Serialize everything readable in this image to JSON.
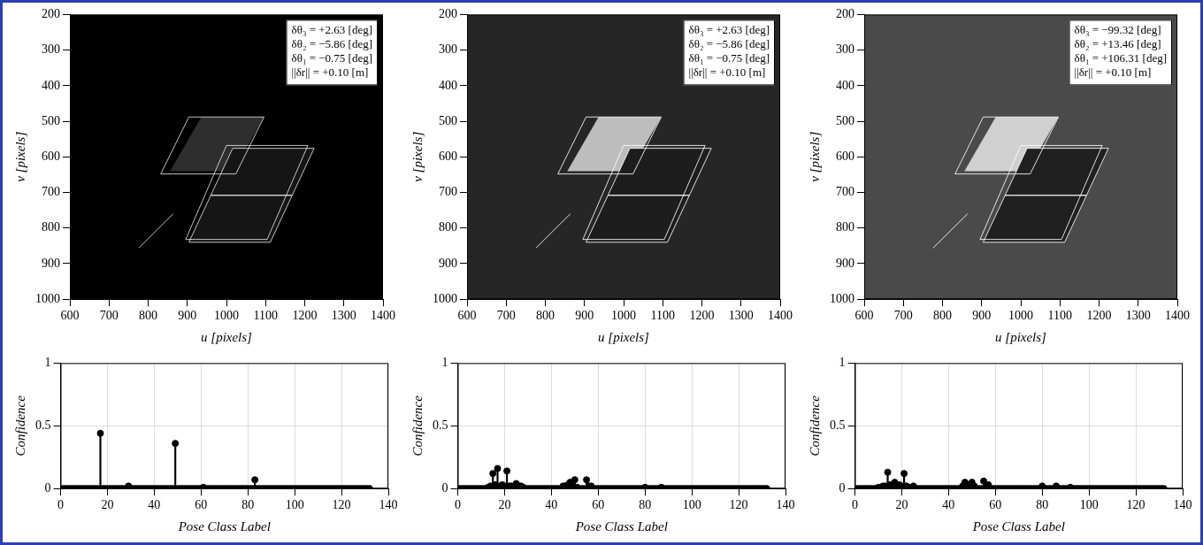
{
  "chart_data": [
    {
      "type": "image",
      "xlabel": "u [pixels]",
      "ylabel": "v [pixels]",
      "xlim": [
        600,
        1400
      ],
      "xticks": [
        600,
        700,
        800,
        900,
        1000,
        1100,
        1200,
        1300,
        1400
      ],
      "ylim": [
        1000,
        200
      ],
      "yticks": [
        200,
        300,
        400,
        500,
        600,
        700,
        800,
        900,
        1000
      ],
      "grid": false,
      "annotations": [
        "δθ₃ = +2.63 [deg]",
        "δθ₂ = −5.86 [deg]",
        "δθ₁ = −0.75 [deg]",
        "||δr|| = +0.10 [m]"
      ]
    },
    {
      "type": "image",
      "xlabel": "u [pixels]",
      "ylabel": "v [pixels]",
      "xlim": [
        600,
        1400
      ],
      "xticks": [
        600,
        700,
        800,
        900,
        1000,
        1100,
        1200,
        1300,
        1400
      ],
      "ylim": [
        1000,
        200
      ],
      "yticks": [
        200,
        300,
        400,
        500,
        600,
        700,
        800,
        900,
        1000
      ],
      "grid": false,
      "annotations": [
        "δθ₃ = +2.63 [deg]",
        "δθ₂ = −5.86 [deg]",
        "δθ₁ = −0.75 [deg]",
        "||δr|| = +0.10 [m]"
      ]
    },
    {
      "type": "image",
      "xlabel": "u [pixels]",
      "ylabel": "v [pixels]",
      "xlim": [
        600,
        1400
      ],
      "xticks": [
        600,
        700,
        800,
        900,
        1000,
        1100,
        1200,
        1300,
        1400
      ],
      "ylim": [
        1000,
        200
      ],
      "yticks": [
        200,
        300,
        400,
        500,
        600,
        700,
        800,
        900,
        1000
      ],
      "grid": false,
      "annotations": [
        "δθ₃ = −99.32 [deg]",
        "δθ₂ = +13.46 [deg]",
        "δθ₁ = +106.31 [deg]",
        "||δr|| = +0.10 [m]"
      ]
    },
    {
      "type": "stem",
      "xlabel": "Pose Class Label",
      "ylabel": "Confidence",
      "xlim": [
        0,
        140
      ],
      "xticks": [
        0,
        20,
        40,
        60,
        80,
        100,
        120,
        140
      ],
      "ylim": [
        0,
        1
      ],
      "yticks": [
        0,
        0.5,
        1
      ],
      "grid": true,
      "color": "#000000",
      "marker": "circle",
      "x": [
        1,
        2,
        3,
        4,
        5,
        6,
        7,
        8,
        9,
        10,
        11,
        12,
        13,
        14,
        15,
        16,
        17,
        18,
        19,
        20,
        21,
        22,
        23,
        24,
        25,
        26,
        27,
        28,
        29,
        30,
        31,
        32,
        33,
        34,
        35,
        36,
        37,
        38,
        39,
        40,
        41,
        42,
        43,
        44,
        45,
        46,
        47,
        48,
        49,
        50,
        51,
        52,
        53,
        54,
        55,
        56,
        57,
        58,
        59,
        60,
        61,
        62,
        63,
        64,
        65,
        66,
        67,
        68,
        69,
        70,
        71,
        72,
        73,
        74,
        75,
        76,
        77,
        78,
        79,
        80,
        81,
        82,
        83,
        84,
        85,
        86,
        87,
        88,
        89,
        90,
        91,
        92,
        93,
        94,
        95,
        96,
        97,
        98,
        99,
        100,
        101,
        102,
        103,
        104,
        105,
        106,
        107,
        108,
        109,
        110,
        111,
        112,
        113,
        114,
        115,
        116,
        117,
        118,
        119,
        120,
        121,
        122,
        123,
        124,
        125,
        126,
        127,
        128,
        129,
        130,
        131,
        132
      ],
      "values": [
        0,
        0,
        0,
        0,
        0,
        0,
        0,
        0,
        0,
        0,
        0,
        0,
        0,
        0,
        0,
        0,
        0.44,
        0,
        0,
        0,
        0,
        0,
        0,
        0,
        0,
        0,
        0,
        0,
        0.02,
        0,
        0,
        0,
        0,
        0,
        0,
        0,
        0,
        0,
        0,
        0,
        0,
        0,
        0,
        0,
        0,
        0,
        0,
        0,
        0.36,
        0,
        0,
        0,
        0,
        0,
        0,
        0,
        0,
        0,
        0,
        0,
        0.01,
        0,
        0,
        0,
        0,
        0,
        0,
        0,
        0,
        0,
        0,
        0,
        0,
        0,
        0,
        0,
        0,
        0,
        0,
        0,
        0,
        0,
        0.07,
        0,
        0,
        0,
        0,
        0,
        0,
        0,
        0,
        0,
        0,
        0,
        0,
        0,
        0,
        0,
        0,
        0,
        0,
        0,
        0,
        0,
        0,
        0,
        0,
        0,
        0,
        0,
        0,
        0,
        0,
        0,
        0,
        0,
        0,
        0,
        0,
        0,
        0,
        0,
        0,
        0,
        0,
        0,
        0,
        0,
        0,
        0,
        0,
        0
      ]
    },
    {
      "type": "stem",
      "xlabel": "Pose Class Label",
      "ylabel": "Confidence",
      "xlim": [
        0,
        140
      ],
      "xticks": [
        0,
        20,
        40,
        60,
        80,
        100,
        120,
        140
      ],
      "ylim": [
        0,
        1
      ],
      "yticks": [
        0,
        0.5,
        1
      ],
      "grid": true,
      "color": "#000000",
      "marker": "circle",
      "x": [
        1,
        2,
        3,
        4,
        5,
        6,
        7,
        8,
        9,
        10,
        11,
        12,
        13,
        14,
        15,
        16,
        17,
        18,
        19,
        20,
        21,
        22,
        23,
        24,
        25,
        26,
        27,
        28,
        29,
        30,
        31,
        32,
        33,
        34,
        35,
        36,
        37,
        38,
        39,
        40,
        41,
        42,
        43,
        44,
        45,
        46,
        47,
        48,
        49,
        50,
        51,
        52,
        53,
        54,
        55,
        56,
        57,
        58,
        59,
        60,
        61,
        62,
        63,
        64,
        65,
        66,
        67,
        68,
        69,
        70,
        71,
        72,
        73,
        74,
        75,
        76,
        77,
        78,
        79,
        80,
        81,
        82,
        83,
        84,
        85,
        86,
        87,
        88,
        89,
        90,
        91,
        92,
        93,
        94,
        95,
        96,
        97,
        98,
        99,
        100,
        101,
        102,
        103,
        104,
        105,
        106,
        107,
        108,
        109,
        110,
        111,
        112,
        113,
        114,
        115,
        116,
        117,
        118,
        119,
        120,
        121,
        122,
        123,
        124,
        125,
        126,
        127,
        128,
        129,
        130,
        131,
        132
      ],
      "values": [
        0,
        0,
        0,
        0,
        0,
        0,
        0,
        0,
        0,
        0,
        0,
        0,
        0.01,
        0.02,
        0.12,
        0.03,
        0.16,
        0.02,
        0.03,
        0.02,
        0.14,
        0.02,
        0.02,
        0.01,
        0.04,
        0.02,
        0.02,
        0.01,
        0,
        0,
        0,
        0,
        0,
        0,
        0,
        0,
        0,
        0,
        0,
        0,
        0,
        0,
        0,
        0,
        0.02,
        0.02,
        0.03,
        0.05,
        0.02,
        0.07,
        0.01,
        0,
        0,
        0,
        0.07,
        0.02,
        0.02,
        0,
        0,
        0,
        0,
        0,
        0,
        0,
        0,
        0,
        0,
        0,
        0,
        0,
        0,
        0,
        0,
        0,
        0,
        0,
        0,
        0,
        0,
        0.01,
        0,
        0,
        0,
        0,
        0,
        0,
        0.01,
        0,
        0,
        0,
        0,
        0,
        0,
        0,
        0,
        0,
        0,
        0,
        0,
        0,
        0,
        0,
        0,
        0,
        0,
        0,
        0,
        0,
        0,
        0,
        0,
        0,
        0,
        0,
        0,
        0,
        0,
        0,
        0,
        0,
        0,
        0,
        0,
        0,
        0,
        0,
        0,
        0,
        0,
        0,
        0,
        0
      ]
    },
    {
      "type": "stem",
      "xlabel": "Pose Class Label",
      "ylabel": "Confidence",
      "xlim": [
        0,
        140
      ],
      "xticks": [
        0,
        20,
        40,
        60,
        80,
        100,
        120,
        140
      ],
      "ylim": [
        0,
        1
      ],
      "yticks": [
        0,
        0.5,
        1
      ],
      "grid": true,
      "color": "#000000",
      "marker": "circle",
      "x": [
        1,
        2,
        3,
        4,
        5,
        6,
        7,
        8,
        9,
        10,
        11,
        12,
        13,
        14,
        15,
        16,
        17,
        18,
        19,
        20,
        21,
        22,
        23,
        24,
        25,
        26,
        27,
        28,
        29,
        30,
        31,
        32,
        33,
        34,
        35,
        36,
        37,
        38,
        39,
        40,
        41,
        42,
        43,
        44,
        45,
        46,
        47,
        48,
        49,
        50,
        51,
        52,
        53,
        54,
        55,
        56,
        57,
        58,
        59,
        60,
        61,
        62,
        63,
        64,
        65,
        66,
        67,
        68,
        69,
        70,
        71,
        72,
        73,
        74,
        75,
        76,
        77,
        78,
        79,
        80,
        81,
        82,
        83,
        84,
        85,
        86,
        87,
        88,
        89,
        90,
        91,
        92,
        93,
        94,
        95,
        96,
        97,
        98,
        99,
        100,
        101,
        102,
        103,
        104,
        105,
        106,
        107,
        108,
        109,
        110,
        111,
        112,
        113,
        114,
        115,
        116,
        117,
        118,
        119,
        120,
        121,
        122,
        123,
        124,
        125,
        126,
        127,
        128,
        129,
        130,
        131,
        132
      ],
      "values": [
        0,
        0,
        0,
        0,
        0,
        0,
        0,
        0,
        0,
        0.01,
        0,
        0.02,
        0.02,
        0.13,
        0.03,
        0.02,
        0.05,
        0.02,
        0.03,
        0.02,
        0.12,
        0.02,
        0.01,
        0,
        0.02,
        0,
        0,
        0,
        0,
        0,
        0,
        0,
        0,
        0,
        0,
        0,
        0,
        0,
        0,
        0,
        0,
        0,
        0,
        0,
        0,
        0.02,
        0.05,
        0.03,
        0,
        0.05,
        0.02,
        0,
        0,
        0,
        0.06,
        0.02,
        0.03,
        0,
        0,
        0,
        0,
        0,
        0,
        0,
        0,
        0,
        0,
        0,
        0,
        0,
        0,
        0,
        0,
        0,
        0,
        0,
        0,
        0,
        0,
        0.02,
        0,
        0,
        0,
        0,
        0,
        0.02,
        0,
        0,
        0,
        0,
        0,
        0.01,
        0,
        0,
        0,
        0,
        0,
        0,
        0,
        0,
        0,
        0,
        0,
        0,
        0,
        0,
        0,
        0,
        0,
        0,
        0,
        0,
        0,
        0,
        0,
        0,
        0,
        0,
        0,
        0,
        0,
        0,
        0,
        0,
        0,
        0,
        0,
        0,
        0,
        0,
        0,
        0
      ]
    }
  ]
}
